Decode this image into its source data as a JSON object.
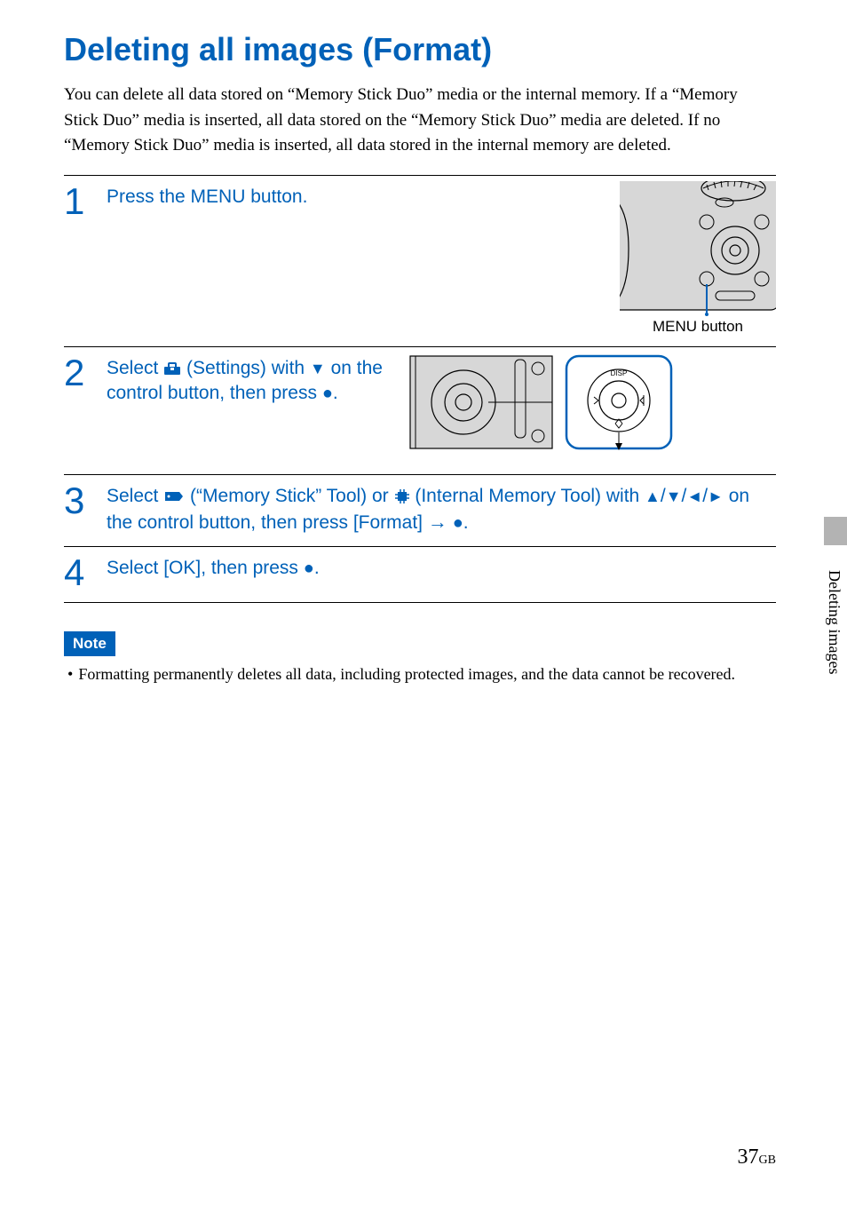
{
  "title": "Deleting all images (Format)",
  "intro": "You can delete all data stored on “Memory Stick Duo” media or the internal memory. If a “Memory Stick Duo” media is inserted, all data stored on the “Memory Stick Duo” media are deleted. If no “Memory Stick Duo” media is inserted, all data stored in the internal memory are deleted.",
  "colors": {
    "accent": "#0061b8",
    "illustration_fill": "#d7d7d7",
    "text": "#000000",
    "grey_tab": "#b3b3b3",
    "background": "#ffffff"
  },
  "steps": [
    {
      "number": "1",
      "text_html": "Press the MENU button.",
      "illustration": "camera-corner",
      "illustration_label": "MENU button"
    },
    {
      "number": "2",
      "text_html": "Select __TOOLBOX__ (Settings) with ▼ on the control button, then press ●.",
      "illustration": "control-wheel"
    },
    {
      "number": "3",
      "text_html": "Select __CARD__ (“Memory Stick” Tool) or __CHIP__ (Internal Memory Tool) with ▲/▼/◄/► on the control button, then press [Format] → ●."
    },
    {
      "number": "4",
      "text_html": "Select [OK], then press ●."
    }
  ],
  "note": {
    "label": "Note",
    "items": [
      "Formatting permanently deletes all data, including protected images, and the data cannot be recovered."
    ]
  },
  "side_tab": "Deleting images",
  "page_number": "37",
  "page_suffix": "GB"
}
